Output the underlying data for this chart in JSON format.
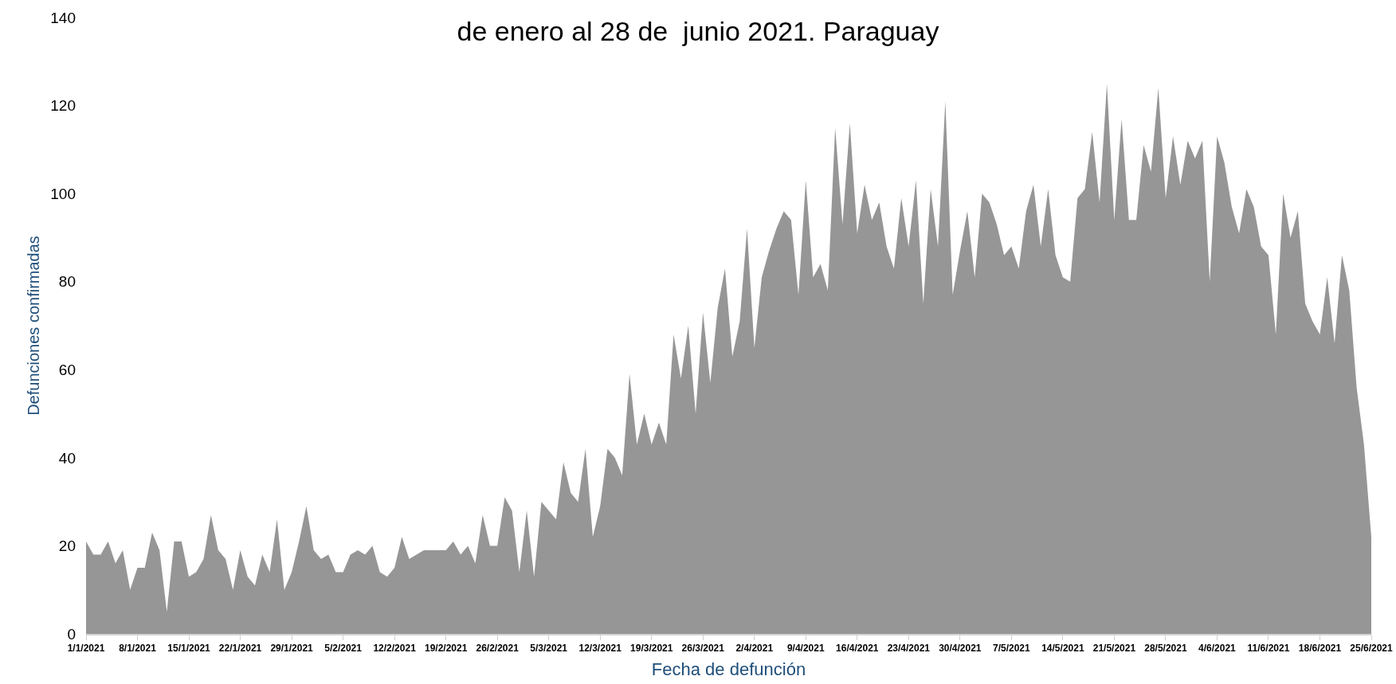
{
  "chart_data": {
    "type": "area",
    "title": "de enero al 28 de  junio 2021. Paraguay",
    "xlabel": "Fecha de defunción",
    "ylabel": "Defunciones confirmadas",
    "x": [
      "2021-01-01",
      "2021-01-02",
      "2021-01-03",
      "2021-01-04",
      "2021-01-05",
      "2021-01-06",
      "2021-01-07",
      "2021-01-08",
      "2021-01-09",
      "2021-01-10",
      "2021-01-11",
      "2021-01-12",
      "2021-01-13",
      "2021-01-14",
      "2021-01-15",
      "2021-01-16",
      "2021-01-17",
      "2021-01-18",
      "2021-01-19",
      "2021-01-20",
      "2021-01-21",
      "2021-01-22",
      "2021-01-23",
      "2021-01-24",
      "2021-01-25",
      "2021-01-26",
      "2021-01-27",
      "2021-01-28",
      "2021-01-29",
      "2021-01-30",
      "2021-01-31",
      "2021-02-01",
      "2021-02-02",
      "2021-02-03",
      "2021-02-04",
      "2021-02-05",
      "2021-02-06",
      "2021-02-07",
      "2021-02-08",
      "2021-02-09",
      "2021-02-10",
      "2021-02-11",
      "2021-02-12",
      "2021-02-13",
      "2021-02-14",
      "2021-02-15",
      "2021-02-16",
      "2021-02-17",
      "2021-02-18",
      "2021-02-19",
      "2021-02-20",
      "2021-02-21",
      "2021-02-22",
      "2021-02-23",
      "2021-02-24",
      "2021-02-25",
      "2021-02-26",
      "2021-02-27",
      "2021-02-28",
      "2021-03-01",
      "2021-03-02",
      "2021-03-03",
      "2021-03-04",
      "2021-03-05",
      "2021-03-06",
      "2021-03-07",
      "2021-03-08",
      "2021-03-09",
      "2021-03-10",
      "2021-03-11",
      "2021-03-12",
      "2021-03-13",
      "2021-03-14",
      "2021-03-15",
      "2021-03-16",
      "2021-03-17",
      "2021-03-18",
      "2021-03-19",
      "2021-03-20",
      "2021-03-21",
      "2021-03-22",
      "2021-03-23",
      "2021-03-24",
      "2021-03-25",
      "2021-03-26",
      "2021-03-27",
      "2021-03-28",
      "2021-03-29",
      "2021-03-30",
      "2021-03-31",
      "2021-04-01",
      "2021-04-02",
      "2021-04-03",
      "2021-04-04",
      "2021-04-05",
      "2021-04-06",
      "2021-04-07",
      "2021-04-08",
      "2021-04-09",
      "2021-04-10",
      "2021-04-11",
      "2021-04-12",
      "2021-04-13",
      "2021-04-14",
      "2021-04-15",
      "2021-04-16",
      "2021-04-17",
      "2021-04-18",
      "2021-04-19",
      "2021-04-20",
      "2021-04-21",
      "2021-04-22",
      "2021-04-23",
      "2021-04-24",
      "2021-04-25",
      "2021-04-26",
      "2021-04-27",
      "2021-04-28",
      "2021-04-29",
      "2021-04-30",
      "2021-05-01",
      "2021-05-02",
      "2021-05-03",
      "2021-05-04",
      "2021-05-05",
      "2021-05-06",
      "2021-05-07",
      "2021-05-08",
      "2021-05-09",
      "2021-05-10",
      "2021-05-11",
      "2021-05-12",
      "2021-05-13",
      "2021-05-14",
      "2021-05-15",
      "2021-05-16",
      "2021-05-17",
      "2021-05-18",
      "2021-05-19",
      "2021-05-20",
      "2021-05-21",
      "2021-05-22",
      "2021-05-23",
      "2021-05-24",
      "2021-05-25",
      "2021-05-26",
      "2021-05-27",
      "2021-05-28",
      "2021-05-29",
      "2021-05-30",
      "2021-05-31",
      "2021-06-01",
      "2021-06-02",
      "2021-06-03",
      "2021-06-04",
      "2021-06-05",
      "2021-06-06",
      "2021-06-07",
      "2021-06-08",
      "2021-06-09",
      "2021-06-10",
      "2021-06-11",
      "2021-06-12",
      "2021-06-13",
      "2021-06-14",
      "2021-06-15",
      "2021-06-16",
      "2021-06-17",
      "2021-06-18",
      "2021-06-19",
      "2021-06-20",
      "2021-06-21",
      "2021-06-22",
      "2021-06-23",
      "2021-06-24",
      "2021-06-25"
    ],
    "series": [
      {
        "color": "#969696",
        "values": [
          21,
          18,
          18,
          21,
          16,
          19,
          10,
          15,
          15,
          23,
          19,
          5,
          21,
          21,
          13,
          14,
          17,
          27,
          19,
          17,
          10,
          19,
          13,
          11,
          18,
          14,
          26,
          10,
          14,
          21,
          29,
          19,
          17,
          18,
          14,
          14,
          18,
          19,
          18,
          20,
          14,
          13,
          15,
          22,
          17,
          18,
          19,
          19,
          19,
          19,
          21,
          18,
          20,
          16,
          27,
          20,
          20,
          31,
          28,
          14,
          28,
          13,
          30,
          28,
          26,
          39,
          32,
          30,
          42,
          22,
          29,
          42,
          40,
          36,
          59,
          43,
          50,
          43,
          48,
          43,
          68,
          58,
          70,
          50,
          73,
          57,
          74,
          83,
          63,
          71,
          92,
          65,
          81,
          87,
          92,
          96,
          94,
          77,
          103,
          81,
          84,
          78,
          115,
          93,
          116,
          91,
          102,
          94,
          98,
          88,
          83,
          99,
          88,
          103,
          75,
          101,
          88,
          121,
          77,
          87,
          96,
          81,
          100,
          98,
          93,
          86,
          88,
          83,
          96,
          102,
          88,
          101,
          86,
          81,
          80,
          99,
          101,
          114,
          98,
          125,
          94,
          117,
          94,
          94,
          111,
          105,
          124,
          99,
          113,
          102,
          112,
          108,
          112,
          80,
          113,
          107,
          97,
          91,
          101,
          97,
          88,
          86,
          68,
          100,
          90,
          96,
          75,
          71,
          68,
          81,
          66,
          86,
          78,
          56,
          43,
          22
        ]
      }
    ],
    "xlim": [
      "2021-01-01",
      "2021-06-25"
    ],
    "xticks": [
      {
        "value": "2021-01-01",
        "label": "1/1/2021"
      },
      {
        "value": "2021-01-08",
        "label": "8/1/2021"
      },
      {
        "value": "2021-01-15",
        "label": "15/1/2021"
      },
      {
        "value": "2021-01-22",
        "label": "22/1/2021"
      },
      {
        "value": "2021-01-29",
        "label": "29/1/2021"
      },
      {
        "value": "2021-02-05",
        "label": "5/2/2021"
      },
      {
        "value": "2021-02-12",
        "label": "12/2/2021"
      },
      {
        "value": "2021-02-19",
        "label": "19/2/2021"
      },
      {
        "value": "2021-02-26",
        "label": "26/2/2021"
      },
      {
        "value": "2021-03-05",
        "label": "5/3/2021"
      },
      {
        "value": "2021-03-12",
        "label": "12/3/2021"
      },
      {
        "value": "2021-03-19",
        "label": "19/3/2021"
      },
      {
        "value": "2021-03-26",
        "label": "26/3/2021"
      },
      {
        "value": "2021-04-02",
        "label": "2/4/2021"
      },
      {
        "value": "2021-04-09",
        "label": "9/4/2021"
      },
      {
        "value": "2021-04-16",
        "label": "16/4/2021"
      },
      {
        "value": "2021-04-23",
        "label": "23/4/2021"
      },
      {
        "value": "2021-04-30",
        "label": "30/4/2021"
      },
      {
        "value": "2021-05-07",
        "label": "7/5/2021"
      },
      {
        "value": "2021-05-14",
        "label": "14/5/2021"
      },
      {
        "value": "2021-05-21",
        "label": "21/5/2021"
      },
      {
        "value": "2021-05-28",
        "label": "28/5/2021"
      },
      {
        "value": "2021-06-04",
        "label": "4/6/2021"
      },
      {
        "value": "2021-06-11",
        "label": "11/6/2021"
      },
      {
        "value": "2021-06-18",
        "label": "18/6/2021"
      },
      {
        "value": "2021-06-25",
        "label": "25/6/2021"
      }
    ],
    "ylim": [
      0,
      140
    ],
    "yticks": [
      0,
      20,
      40,
      60,
      80,
      100,
      120,
      140
    ],
    "grid": false
  }
}
